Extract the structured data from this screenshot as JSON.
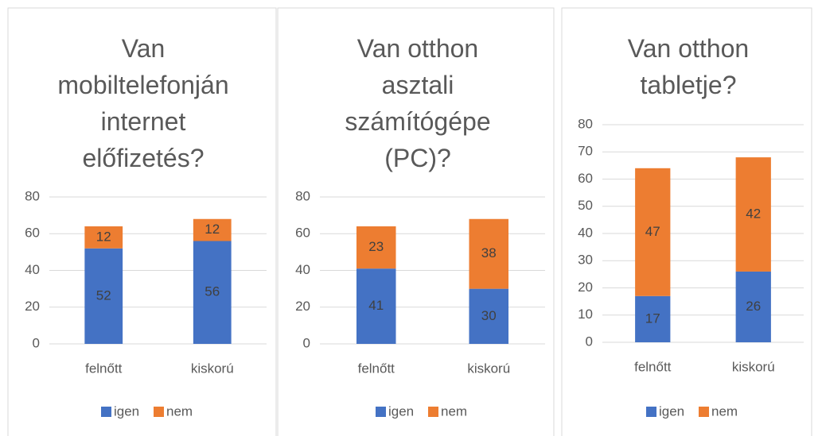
{
  "chart_data": [
    {
      "type": "bar",
      "stacked": true,
      "title": "Van mobiltelefonján internet előfizetés?",
      "categories": [
        "felnőtt",
        "kiskorú"
      ],
      "series": [
        {
          "name": "igen",
          "color": "#4472c4",
          "values": [
            52,
            56
          ]
        },
        {
          "name": "nem",
          "color": "#ed7d31",
          "values": [
            12,
            12
          ]
        }
      ],
      "ylim": [
        0,
        80
      ],
      "yticks": [
        0,
        20,
        40,
        60,
        80
      ],
      "grid": true,
      "legend": "bottom"
    },
    {
      "type": "bar",
      "stacked": true,
      "title": "Van otthon asztali számítógépe (PC)?",
      "categories": [
        "felnőtt",
        "kiskorú"
      ],
      "series": [
        {
          "name": "igen",
          "color": "#4472c4",
          "values": [
            41,
            30
          ]
        },
        {
          "name": "nem",
          "color": "#ed7d31",
          "values": [
            23,
            38
          ]
        }
      ],
      "ylim": [
        0,
        80
      ],
      "yticks": [
        0,
        20,
        40,
        60,
        80
      ],
      "grid": true,
      "legend": "bottom"
    },
    {
      "type": "bar",
      "stacked": true,
      "title": "Van otthon tabletje?",
      "categories": [
        "felnőtt",
        "kiskorú"
      ],
      "series": [
        {
          "name": "igen",
          "color": "#4472c4",
          "values": [
            17,
            26
          ]
        },
        {
          "name": "nem",
          "color": "#ed7d31",
          "values": [
            47,
            42
          ]
        }
      ],
      "ylim": [
        0,
        80
      ],
      "yticks": [
        0,
        10,
        20,
        30,
        40,
        50,
        60,
        70,
        80
      ],
      "grid": true,
      "legend": "bottom"
    }
  ]
}
